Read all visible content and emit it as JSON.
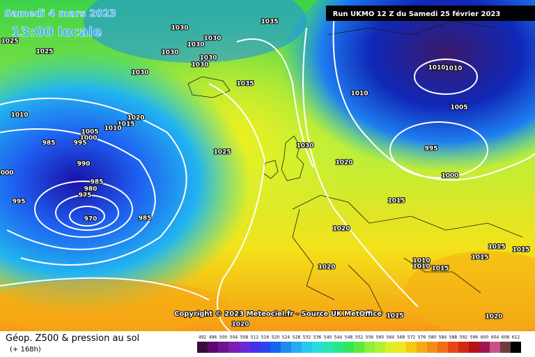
{
  "header": {
    "date": "Samedi 4 mars 2023",
    "time": "13:00 locale",
    "run": "Run UKMO 12 Z du Samedi 25 février 2023"
  },
  "copyright": "Copyright © 2023 Meteociel.fr - Source UK MetOffice",
  "footer": {
    "title": "Géop. Z500 & pression au sol",
    "lead": "(+ 168h)"
  },
  "colorbar": [
    492,
    496,
    500,
    504,
    508,
    512,
    516,
    520,
    524,
    528,
    532,
    536,
    540,
    544,
    548,
    552,
    556,
    560,
    564,
    568,
    572,
    576,
    580,
    584,
    588,
    592,
    596,
    600,
    604,
    608,
    612
  ],
  "isobar_labels": [
    "1030",
    "1035",
    "1025",
    "1025",
    "1030",
    "1030",
    "1030",
    "1030",
    "1030",
    "1030",
    "1035",
    "1010",
    "1010",
    "1010",
    "1005",
    "1010",
    "1020",
    "1015",
    "1010",
    "1005",
    "1000",
    "995",
    "985",
    "1030",
    "1025",
    "1020",
    "990",
    "995",
    "1000",
    "1000",
    "985",
    "980",
    "975",
    "995",
    "970",
    "985",
    "1015",
    "1020",
    "1015",
    "1015",
    "1010",
    "1010",
    "1015",
    "1015",
    "1020",
    "1015",
    "1020",
    "1020"
  ]
}
